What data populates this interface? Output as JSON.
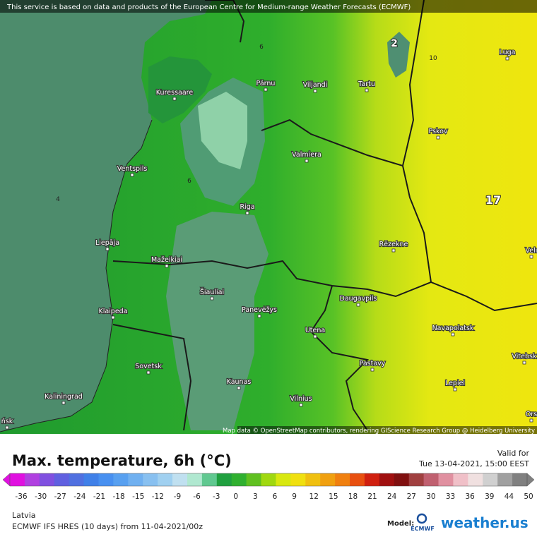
{
  "banner": "This service is based on data and products of the European Centre for Medium-range Weather Forecasts (ECMWF)",
  "map": {
    "cities": [
      "Kuressaare",
      "Pärnu",
      "Viljandi",
      "Tartu",
      "Luga",
      "Pskov",
      "Valmiera",
      "Ventspils",
      "Riga",
      "Liepāja",
      "Rēzekne",
      "Mažeikiai",
      "Šiauliai",
      "Klaipeda",
      "Panevėžys",
      "Daugavpils",
      "Utena",
      "Navapolatsk",
      "Sovetsk",
      "Pastavy",
      "Vitebsk",
      "Kaunas",
      "Lepiel",
      "Kaliningrad",
      "Vilnius",
      "Velı",
      "Ors",
      "ńsk"
    ],
    "contour_labels": [
      "2",
      "10",
      "6",
      "4",
      "6",
      "17"
    ],
    "attribution": "Map data © OpenStreetMap contributors, rendering GIScience Research Group @ Heidelberg University"
  },
  "title": "Max. temperature, 6h (°C)",
  "valid": {
    "label": "Valid for",
    "time": "Tue 13-04-2021, 15:00 EEST"
  },
  "legend": {
    "ticks": [
      -36,
      -30,
      -27,
      -24,
      -21,
      -18,
      -15,
      -12,
      -9,
      -6,
      -3,
      0,
      3,
      6,
      9,
      12,
      15,
      18,
      21,
      24,
      27,
      30,
      33,
      36,
      39,
      44,
      50
    ]
  },
  "footer": {
    "region": "Latvia",
    "model_run": "ECMWF IFS HRES (10 days) from 11-04-2021/00z",
    "model_label": "Model:",
    "model_logo": "ECMWF",
    "brand": "weather.us"
  }
}
